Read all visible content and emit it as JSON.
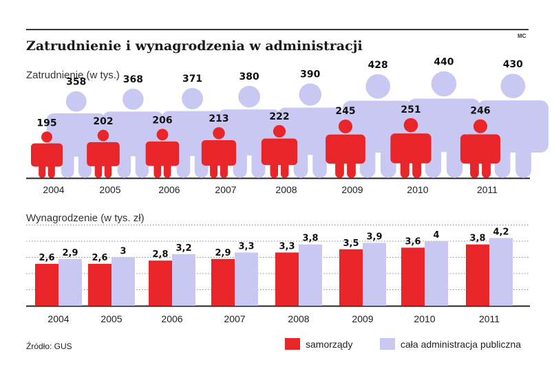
{
  "title": "Zatrudnienie i wynagrodzenia w administracji",
  "credit": "MC",
  "source": "Źródło: GUS",
  "colors": {
    "samorzady": "#e8262a",
    "cala": "#c9c8f2"
  },
  "legend": {
    "samorzady": "samorządy",
    "cala": "cała administracja publiczna"
  },
  "chart_data": [
    {
      "type": "pictogram",
      "title": "Zatrudnienie (w tys.)",
      "categories": [
        "2004",
        "2005",
        "2006",
        "2007",
        "2008",
        "2009",
        "2010",
        "2011"
      ],
      "series": [
        {
          "name": "samorządy",
          "values": [
            195,
            202,
            206,
            213,
            222,
            245,
            251,
            246
          ],
          "labels": [
            "195",
            "202",
            "206",
            "213",
            "222",
            "245",
            "251",
            "246"
          ]
        },
        {
          "name": "cała administracja publiczna",
          "values": [
            358,
            368,
            371,
            380,
            390,
            428,
            440,
            430
          ],
          "labels": [
            "358",
            "368",
            "371",
            "380",
            "390",
            "428",
            "440",
            "430"
          ]
        }
      ]
    },
    {
      "type": "bar",
      "title": "Wynagrodzenie  (w tys. zł)",
      "categories": [
        "2004",
        "2005",
        "2006",
        "2007",
        "2008",
        "2009",
        "2010",
        "2011"
      ],
      "ylim": [
        0,
        4.6
      ],
      "series": [
        {
          "name": "samorządy",
          "values": [
            2.6,
            2.6,
            2.8,
            2.9,
            3.3,
            3.5,
            3.6,
            3.8
          ],
          "labels": [
            "2,6",
            "2,6",
            "2,8",
            "2,9",
            "3,3",
            "3,5",
            "3,6",
            "3,8"
          ]
        },
        {
          "name": "cała administracja publiczna",
          "values": [
            2.9,
            3.0,
            3.2,
            3.3,
            3.8,
            3.9,
            4.0,
            4.2
          ],
          "labels": [
            "2,9",
            "3",
            "3,2",
            "3,3",
            "3,8",
            "3,9",
            "4",
            "4,2"
          ]
        }
      ]
    }
  ]
}
